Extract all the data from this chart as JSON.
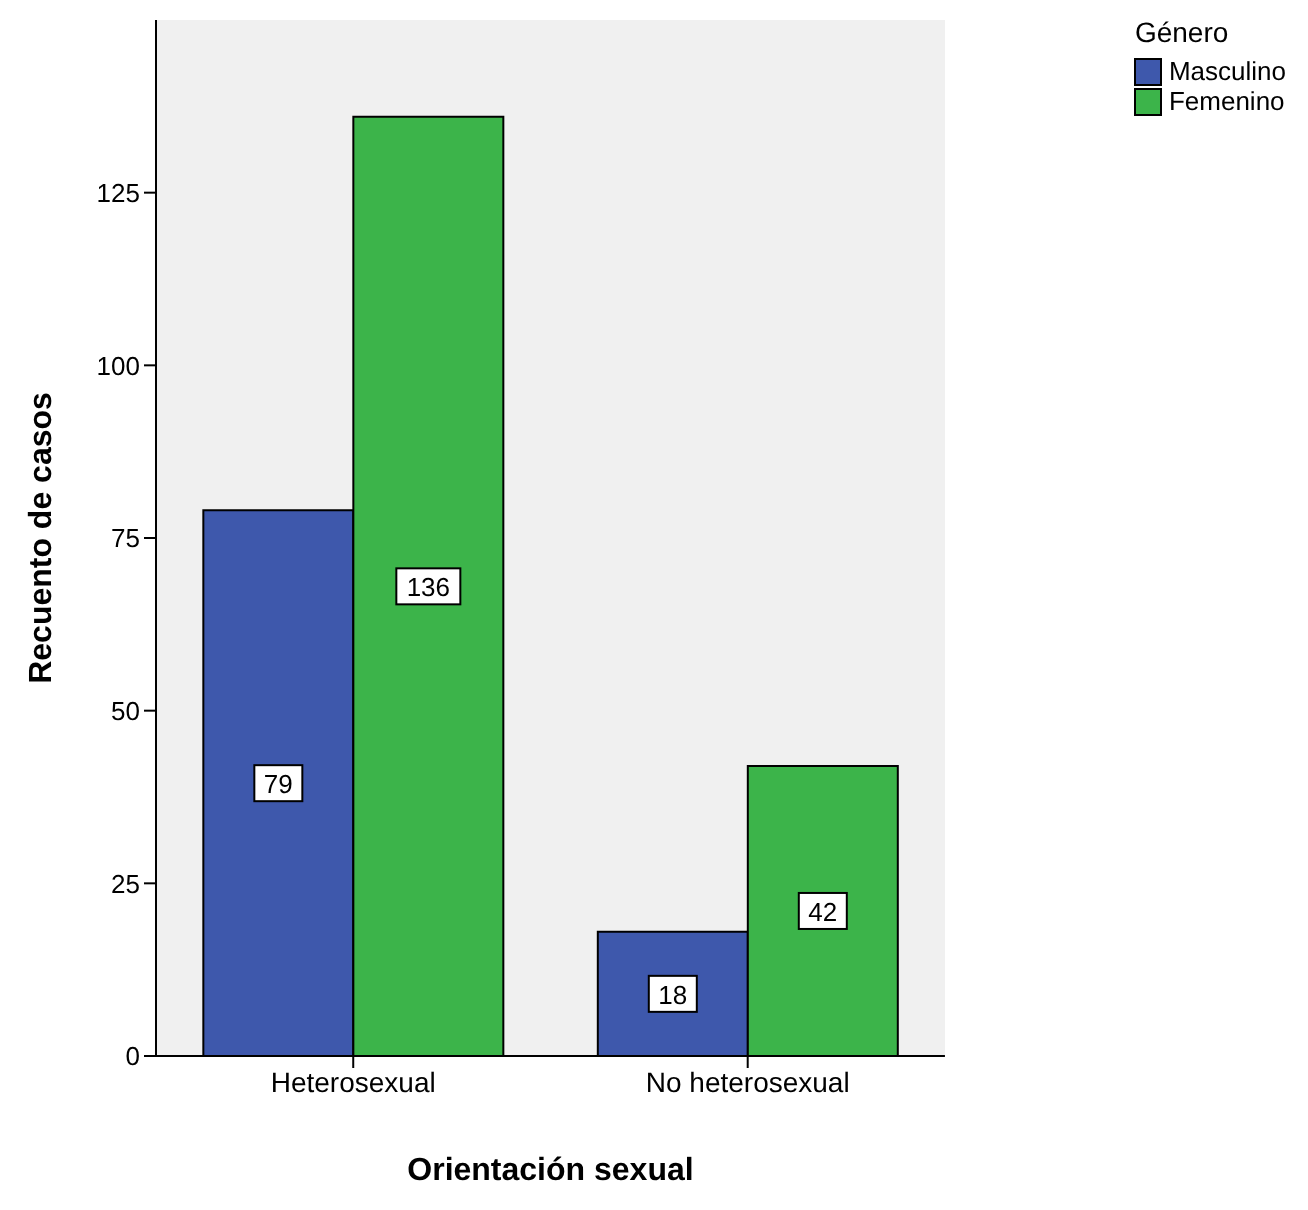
{
  "chart_data": {
    "type": "bar",
    "xlabel": "Orientación sexual",
    "ylabel": "Recuento de casos",
    "legend_title": "Género",
    "categories": [
      "Heterosexual",
      "No heterosexual"
    ],
    "series": [
      {
        "name": "Masculino",
        "color": "#3e58ac",
        "values": [
          79,
          18
        ]
      },
      {
        "name": "Femenino",
        "color": "#3cb44a",
        "values": [
          136,
          42
        ]
      }
    ],
    "ylim": [
      0,
      150
    ],
    "yticks": [
      0,
      25,
      50,
      75,
      100,
      125
    ],
    "grid": false,
    "legend": "top right",
    "data_labels": true
  }
}
